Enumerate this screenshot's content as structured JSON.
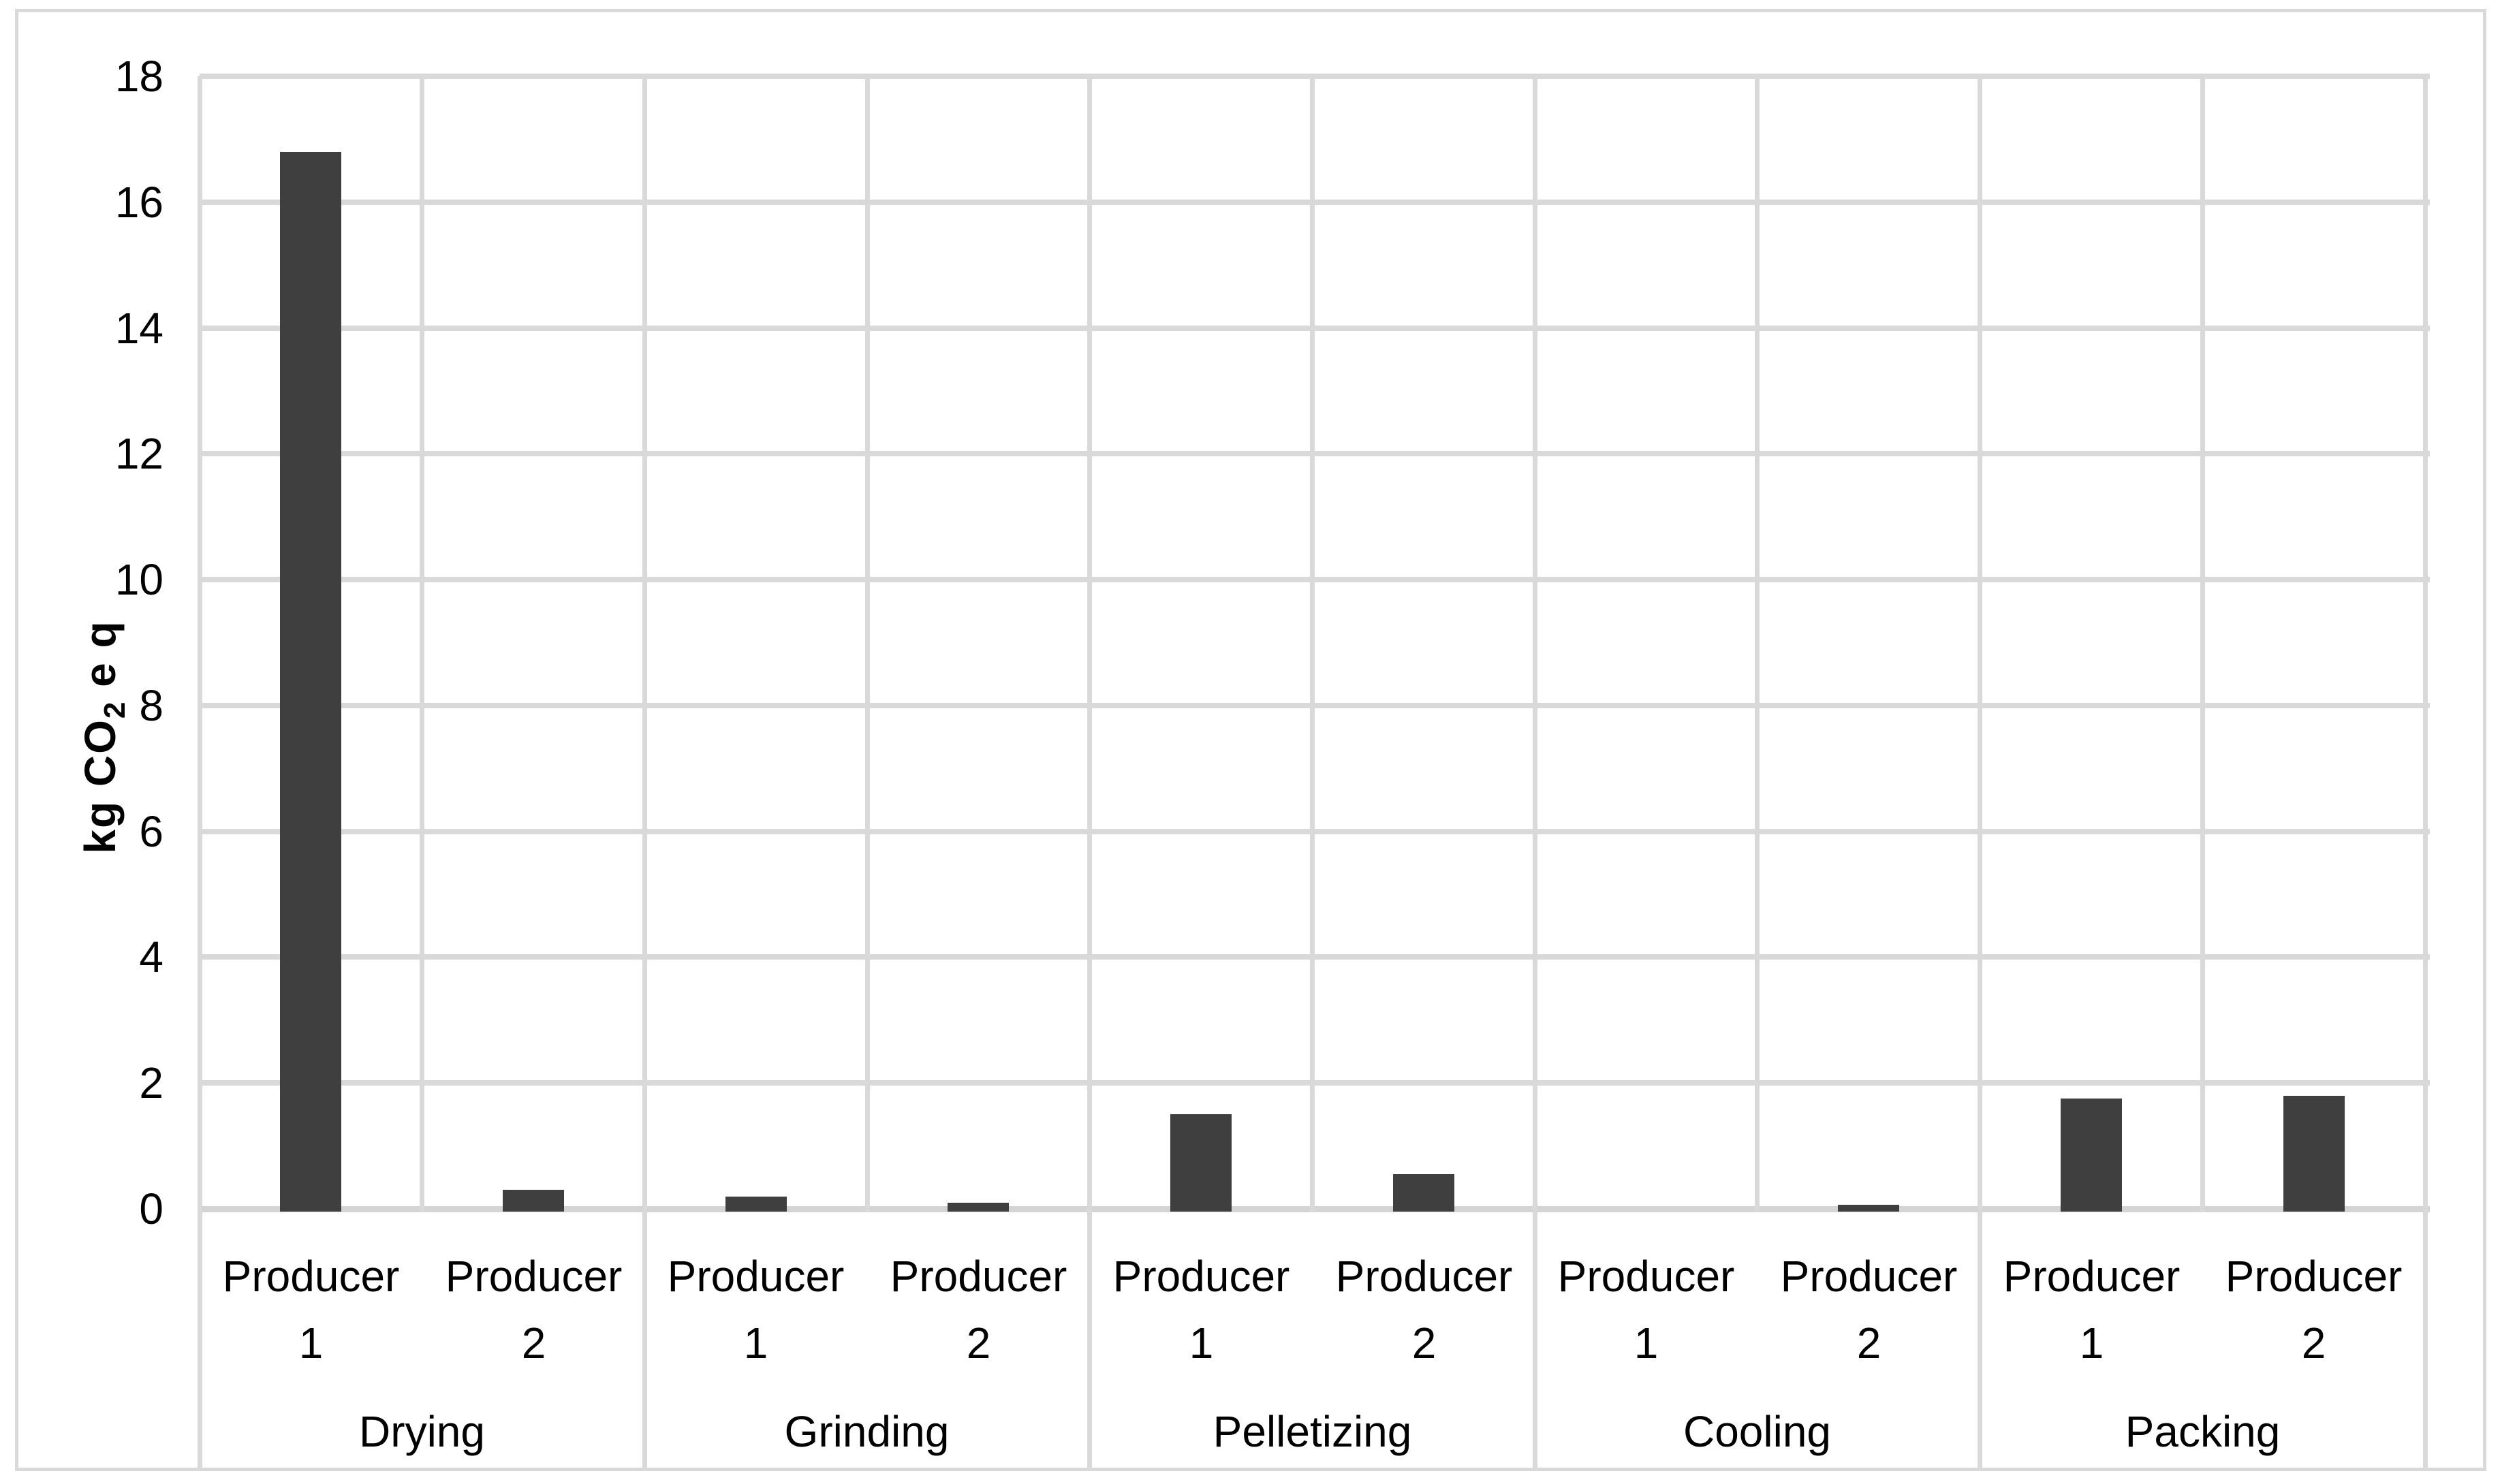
{
  "chart_data": {
    "type": "bar",
    "title": "",
    "ylabel_parts": {
      "prefix": "kg CO",
      "sub": "2",
      "suffix": " e q"
    },
    "ylabel_text": "kg CO2 e q",
    "xlabel": "",
    "legend": "none",
    "grid": true,
    "bar_color": "#3f3f3f",
    "gridline_color": "#d9d9d9",
    "y_axis": {
      "min": 0,
      "max": 18,
      "step": 2,
      "ticks": [
        "0",
        "2",
        "4",
        "6",
        "8",
        "10",
        "12",
        "14",
        "16",
        "18"
      ]
    },
    "groups": [
      {
        "label": "Drying",
        "bars": [
          {
            "label": "Producer 1",
            "label_lines": [
              "Producer",
              "1"
            ],
            "value": 16.8
          },
          {
            "label": "Producer 2",
            "label_lines": [
              "Producer",
              "2"
            ],
            "value": 0.3
          }
        ]
      },
      {
        "label": "Grinding",
        "bars": [
          {
            "label": "Producer 1",
            "label_lines": [
              "Producer",
              "1"
            ],
            "value": 0.2
          },
          {
            "label": "Producer 2",
            "label_lines": [
              "Producer",
              "2"
            ],
            "value": 0.1
          }
        ]
      },
      {
        "label": "Pelletizing",
        "bars": [
          {
            "label": "Producer 1",
            "label_lines": [
              "Producer",
              "1"
            ],
            "value": 1.5
          },
          {
            "label": "Producer 2",
            "label_lines": [
              "Producer",
              "2"
            ],
            "value": 0.55
          }
        ]
      },
      {
        "label": "Cooling",
        "bars": [
          {
            "label": "Producer 1",
            "label_lines": [
              "Producer",
              "1"
            ],
            "value": 0
          },
          {
            "label": "Producer 2",
            "label_lines": [
              "Producer",
              "2"
            ],
            "value": 0.07
          }
        ]
      },
      {
        "label": "Packing",
        "bars": [
          {
            "label": "Producer 1",
            "label_lines": [
              "Producer",
              "1"
            ],
            "value": 1.75
          },
          {
            "label": "Producer 2",
            "label_lines": [
              "Producer",
              "2"
            ],
            "value": 1.8
          }
        ]
      }
    ]
  }
}
